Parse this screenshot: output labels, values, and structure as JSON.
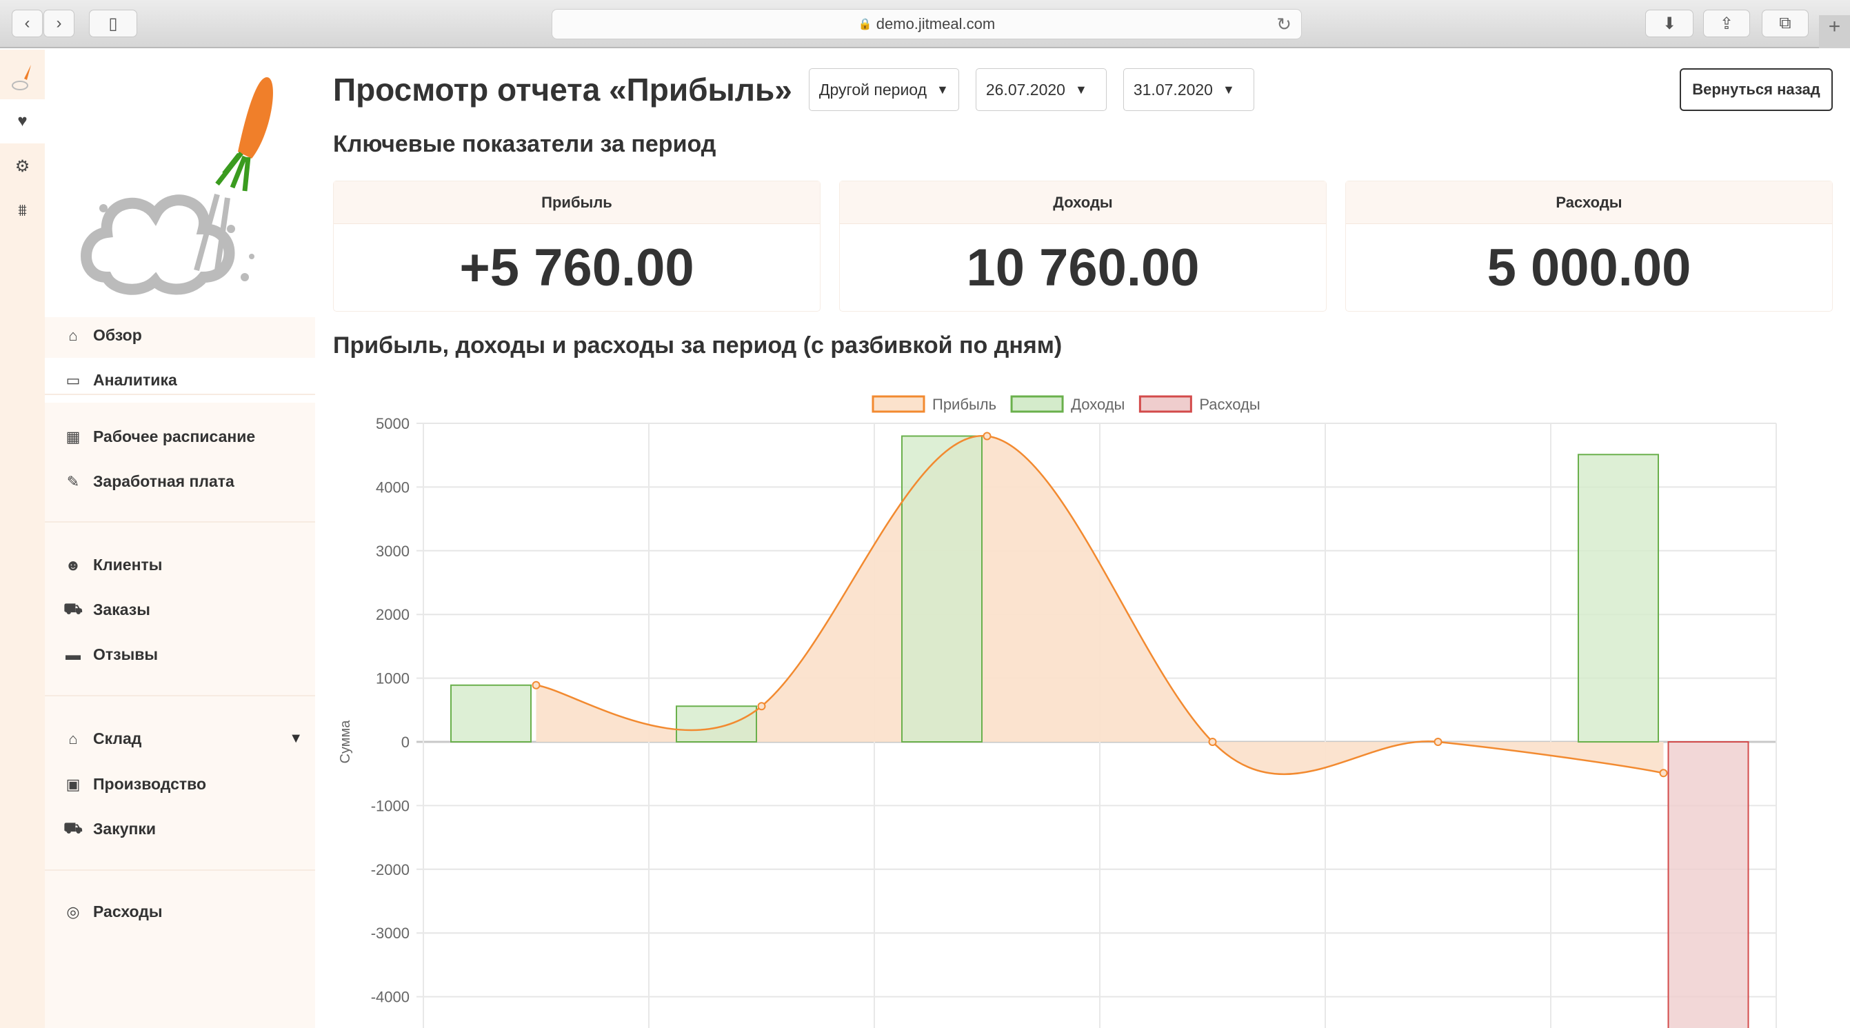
{
  "browser": {
    "url": "demo.jitmeal.com",
    "icons": [
      "back-icon",
      "forward-icon",
      "sidebar-icon",
      "lock-icon",
      "reload-icon",
      "download-icon",
      "share-icon",
      "tabs-icon",
      "new-tab-icon"
    ]
  },
  "rail": {
    "icons": [
      "logo-icon",
      "heart-pulse-icon",
      "gears-icon",
      "org-chart-icon"
    ]
  },
  "sidebar": {
    "items": [
      {
        "label": "Обзор",
        "icon": "home-icon"
      },
      {
        "label": "Аналитика",
        "icon": "presentation-chart-icon",
        "active": true
      },
      {
        "label": "Рабочее расписание",
        "icon": "calendar-clock-icon"
      },
      {
        "label": "Заработная плата",
        "icon": "money-hand-icon"
      },
      {
        "label": "Клиенты",
        "icon": "users-icon"
      },
      {
        "label": "Заказы",
        "icon": "cart-icon"
      },
      {
        "label": "Отзывы",
        "icon": "comment-icon"
      },
      {
        "label": "Склад",
        "icon": "warehouse-icon",
        "expandable": true
      },
      {
        "label": "Производство",
        "icon": "production-icon"
      },
      {
        "label": "Закупки",
        "icon": "cart-plus-icon"
      },
      {
        "label": "Расходы",
        "icon": "coins-search-icon"
      }
    ]
  },
  "header": {
    "title": "Просмотр отчета «Прибыль»",
    "period": "Другой период",
    "date_from": "26.07.2020",
    "date_to": "31.07.2020",
    "back_label": "Вернуться назад"
  },
  "kpi": {
    "title": "Ключевые показатели за период",
    "cards": [
      {
        "label": "Прибыль",
        "value": "+5 760.00"
      },
      {
        "label": "Доходы",
        "value": "10 760.00"
      },
      {
        "label": "Расходы",
        "value": "5 000.00"
      }
    ]
  },
  "chart_section": {
    "title": "Прибыль, доходы и расходы за период (с разбивкой по дням)"
  },
  "chart_data": {
    "type": "bar",
    "ylabel": "Сумма",
    "ylim": [
      -4800,
      5000
    ],
    "yticks": [
      5000,
      4000,
      3000,
      2000,
      1000,
      0,
      -1000,
      -2000,
      -3000,
      -4000
    ],
    "grid": true,
    "legend_position": "top",
    "category_count": 6,
    "series": [
      {
        "name": "Прибыль",
        "type": "line",
        "smooth": true,
        "filled": true,
        "color": "#f28a30",
        "fill": "#fbe2cc",
        "values": [
          890,
          560,
          4800,
          0,
          0,
          -490
        ]
      },
      {
        "name": "Доходы",
        "type": "bar",
        "color": "#6ab04c",
        "fill": "#d4ebcb",
        "values": [
          890,
          560,
          4800,
          0,
          0,
          4510
        ]
      },
      {
        "name": "Расходы",
        "type": "bar",
        "color": "#d34b4b",
        "fill": "#efcdcd",
        "values": [
          0,
          0,
          0,
          0,
          0,
          -5000
        ]
      }
    ]
  }
}
